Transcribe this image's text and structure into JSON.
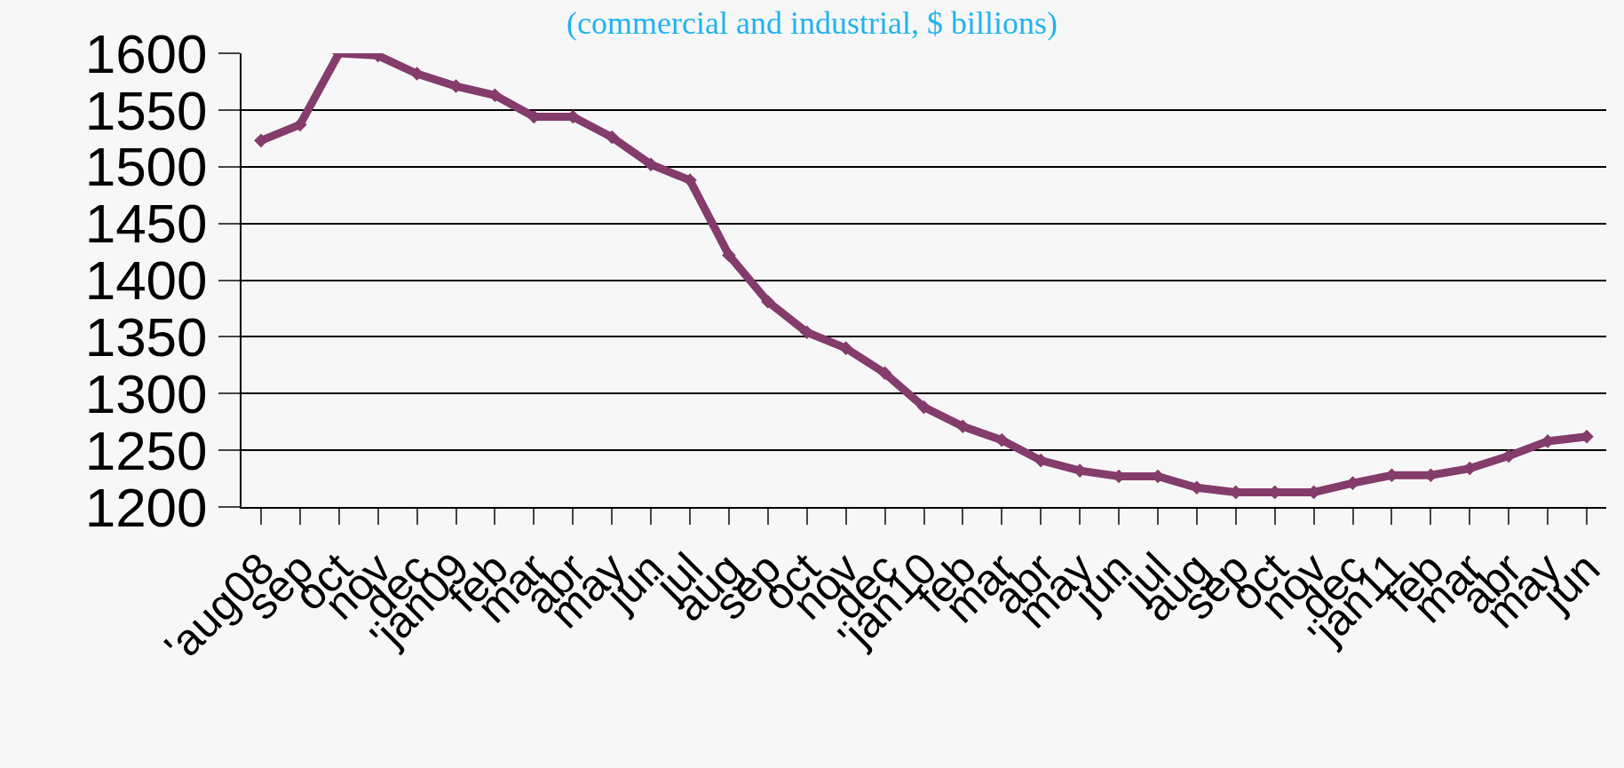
{
  "chart_data": {
    "type": "line",
    "title": "(commercial and industrial, $ billions)",
    "categories": [
      "'aug08",
      "sep",
      "oct",
      "nov",
      "dec",
      "'jan09",
      "feb",
      "mar",
      "abr",
      "may",
      "jun",
      "jul",
      "aug",
      "sep",
      "oct",
      "nov",
      "dec",
      "'jan10",
      "feb",
      "mar",
      "abr",
      "may",
      "jun",
      "jul",
      "aug",
      "sep",
      "oct",
      "nov",
      "dec",
      "'jan11",
      "feb",
      "mar",
      "abr",
      "may",
      "jun"
    ],
    "series": [
      {
        "color": "#843c6c",
        "values": [
          1523,
          1537,
          1600,
          1598,
          1582,
          1571,
          1563,
          1544,
          1544,
          1526,
          1502,
          1488,
          1422,
          1381,
          1354,
          1340,
          1318,
          1288,
          1271,
          1259,
          1241,
          1232,
          1227,
          1227,
          1217,
          1213,
          1213,
          1213,
          1221,
          1228,
          1228,
          1234,
          1245,
          1258,
          1262
        ]
      }
    ],
    "ylim": [
      1200,
      1600
    ],
    "yticks": [
      1200,
      1250,
      1300,
      1350,
      1400,
      1450,
      1500,
      1550,
      1600
    ],
    "grid": "y",
    "marker": "diamond",
    "line_style": "solid"
  }
}
